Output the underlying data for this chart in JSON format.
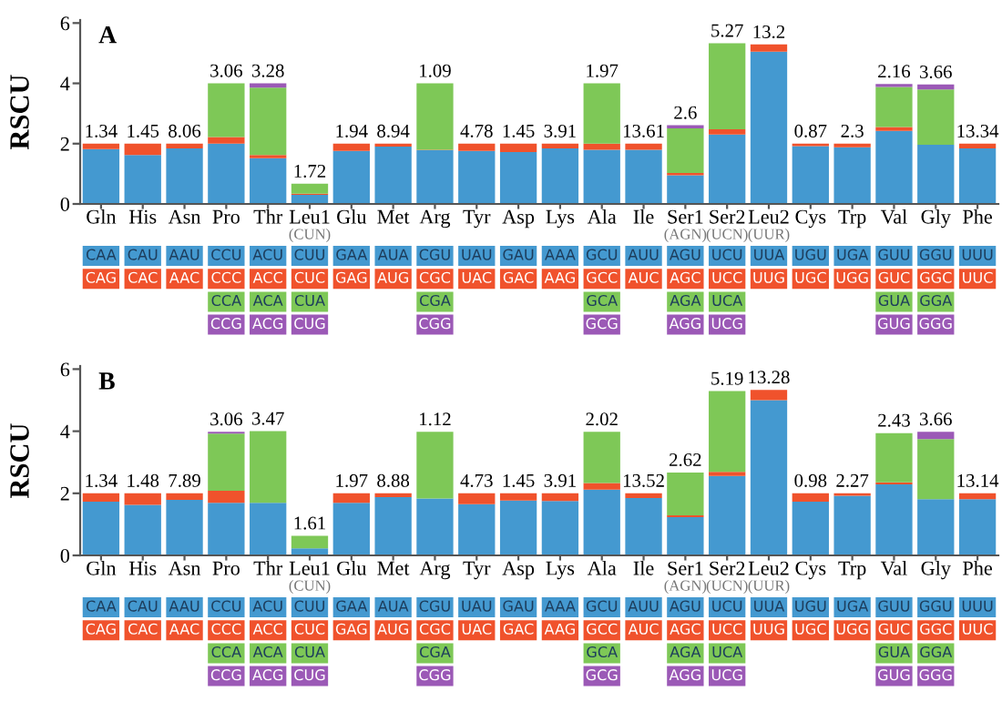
{
  "chart_data": [
    {
      "type": "bar",
      "stacked": true,
      "title": "A",
      "ylabel": "RSCU",
      "categories": [
        "Gln",
        "His",
        "Asn",
        "Pro",
        "Thr",
        "Leu1\n(CUN)",
        "Glu",
        "Met",
        "Arg",
        "Tyr",
        "Asp",
        "Lys",
        "Ala",
        "Ile",
        "Ser1\n(AGN)",
        "Ser2\n(UCN)",
        "Leu2\n(UUR)",
        "Cys",
        "Trp",
        "Val",
        "Gly",
        "Phe"
      ],
      "series": [
        {
          "color": "#4499d0",
          "values": [
            1.82,
            1.62,
            1.84,
            2.0,
            1.52,
            0.3,
            1.76,
            1.9,
            1.78,
            1.76,
            1.72,
            1.84,
            1.8,
            1.8,
            0.95,
            2.3,
            5.05,
            1.92,
            1.88,
            2.42,
            1.96,
            1.84
          ]
        },
        {
          "color": "#f0522c",
          "values": [
            0.18,
            0.38,
            0.16,
            0.22,
            0.1,
            0.04,
            0.24,
            0.1,
            0.02,
            0.24,
            0.28,
            0.16,
            0.2,
            0.2,
            0.08,
            0.18,
            0.24,
            0.08,
            0.12,
            0.13,
            0,
            0.16
          ]
        },
        {
          "color": "#7ec857",
          "values": [
            null,
            null,
            null,
            1.78,
            2.24,
            0.33,
            null,
            null,
            2.2,
            null,
            null,
            null,
            2.0,
            null,
            1.48,
            2.85,
            null,
            null,
            null,
            1.33,
            1.84,
            null
          ]
        },
        {
          "color": "#9b59b6",
          "values": [
            null,
            null,
            null,
            0,
            0.14,
            0,
            null,
            null,
            0,
            null,
            null,
            null,
            0,
            null,
            0.1,
            0,
            null,
            null,
            null,
            0.1,
            0.16,
            null
          ]
        }
      ],
      "ylim": [
        0,
        6.1
      ],
      "yticks": [
        0,
        2,
        4,
        6
      ],
      "grid": false,
      "legend": false,
      "annotations": [
        {
          "text": "1.34",
          "x": "Gln",
          "y": 2.0
        },
        {
          "text": "1.45",
          "x": "His",
          "y": 2.0
        },
        {
          "text": "8.06",
          "x": "Asn",
          "y": 2.0
        },
        {
          "text": "3.06",
          "x": "Pro",
          "y": 4.0
        },
        {
          "text": "3.28",
          "x": "Thr",
          "y": 4.0
        },
        {
          "text": "1.72",
          "x": "Leu1\n(CUN)",
          "y": 0.67
        },
        {
          "text": "1.94",
          "x": "Glu",
          "y": 2.0
        },
        {
          "text": "8.94",
          "x": "Met",
          "y": 2.0
        },
        {
          "text": "1.09",
          "x": "Arg",
          "y": 4.0
        },
        {
          "text": "4.78",
          "x": "Tyr",
          "y": 2.0
        },
        {
          "text": "1.45",
          "x": "Asp",
          "y": 2.0
        },
        {
          "text": "3.91",
          "x": "Lys",
          "y": 2.0
        },
        {
          "text": "1.97",
          "x": "Ala",
          "y": 4.0
        },
        {
          "text": "13.61",
          "x": "Ile",
          "y": 2.0
        },
        {
          "text": "2.6",
          "x": "Ser1\n(AGN)",
          "y": 2.61
        },
        {
          "text": "5.27",
          "x": "Ser2\n(UCN)",
          "y": 5.33
        },
        {
          "text": "13.2",
          "x": "Leu2\n(UUR)",
          "y": 5.29
        },
        {
          "text": "0.87",
          "x": "Cys",
          "y": 2.0
        },
        {
          "text": "2.3",
          "x": "Trp",
          "y": 2.0
        },
        {
          "text": "2.16",
          "x": "Val",
          "y": 3.98
        },
        {
          "text": "3.66",
          "x": "Gly",
          "y": 3.96
        },
        {
          "text": "13.34",
          "x": "Phe",
          "y": 2.0
        },
        "CAA",
        "CAG",
        "CAU",
        "CAC",
        "AAU",
        "AAC",
        "CCU",
        "CCC",
        "CCA",
        "CCG",
        "ACU",
        "ACC",
        "ACA",
        "ACG",
        "CUU",
        "CUC",
        "CUA",
        "CUG",
        "GAA",
        "GAG",
        "AUA",
        "AUG",
        "CGU",
        "CGC",
        "CGA",
        "CGG",
        "UAU",
        "UAC",
        "GAU",
        "GAC",
        "AAA",
        "AAG",
        "GCU",
        "GCC",
        "GCA",
        "GCG",
        "AUU",
        "AUC",
        "AGU",
        "AGC",
        "AGA",
        "AGG",
        "UCU",
        "UCC",
        "UCA",
        "UCG",
        "UUA",
        "UUG",
        "UGU",
        "UGC",
        "UGA",
        "UGG",
        "GUU",
        "GUC",
        "GUA",
        "GUG",
        "GGU",
        "GGC",
        "GGA",
        "GGG",
        "UUU",
        "UUC"
      ]
    },
    {
      "type": "bar",
      "stacked": true,
      "title": "B",
      "ylabel": "RSCU",
      "categories": [
        "Gln",
        "His",
        "Asn",
        "Pro",
        "Thr",
        "Leu1\n(CUN)",
        "Glu",
        "Met",
        "Arg",
        "Tyr",
        "Asp",
        "Lys",
        "Ala",
        "Ile",
        "Ser1\n(AGN)",
        "Ser2\n(UCN)",
        "Leu2\n(UUR)",
        "Cys",
        "Trp",
        "Val",
        "Gly",
        "Phe"
      ],
      "series": [
        {
          "color": "#4499d0",
          "values": [
            1.73,
            1.63,
            1.79,
            1.69,
            1.69,
            0.23,
            1.69,
            1.88,
            1.83,
            1.65,
            1.77,
            1.75,
            2.12,
            1.85,
            1.23,
            2.56,
            5.0,
            1.73,
            1.92,
            2.29,
            1.81,
            1.81
          ]
        },
        {
          "color": "#f0522c",
          "values": [
            0.27,
            0.37,
            0.21,
            0.39,
            0,
            0,
            0.31,
            0.12,
            0,
            0.35,
            0.23,
            0.25,
            0.21,
            0.15,
            0.06,
            0.13,
            0.33,
            0.27,
            0.08,
            0.06,
            0,
            0.19
          ]
        },
        {
          "color": "#7ec857",
          "values": [
            null,
            null,
            null,
            1.84,
            2.31,
            0.4,
            null,
            null,
            2.15,
            null,
            null,
            null,
            1.65,
            null,
            1.38,
            2.6,
            null,
            null,
            null,
            1.59,
            1.94,
            null
          ]
        },
        {
          "color": "#9b59b6",
          "values": [
            null,
            null,
            null,
            0.06,
            0,
            0,
            null,
            null,
            0,
            null,
            null,
            null,
            0,
            null,
            0,
            0,
            null,
            null,
            null,
            0,
            0.23,
            null
          ]
        }
      ],
      "ylim": [
        0,
        6.1
      ],
      "yticks": [
        0,
        2,
        4,
        6
      ],
      "grid": false,
      "legend": false,
      "annotations": [
        {
          "text": "1.34",
          "x": "Gln",
          "y": 2.0
        },
        {
          "text": "1.48",
          "x": "His",
          "y": 2.0
        },
        {
          "text": "7.89",
          "x": "Asn",
          "y": 2.0
        },
        {
          "text": "3.06",
          "x": "Pro",
          "y": 3.98
        },
        {
          "text": "3.47",
          "x": "Thr",
          "y": 4.0
        },
        {
          "text": "1.61",
          "x": "Leu1\n(CUN)",
          "y": 0.63
        },
        {
          "text": "1.97",
          "x": "Glu",
          "y": 2.0
        },
        {
          "text": "8.88",
          "x": "Met",
          "y": 2.0
        },
        {
          "text": "1.12",
          "x": "Arg",
          "y": 3.98
        },
        {
          "text": "4.73",
          "x": "Tyr",
          "y": 2.0
        },
        {
          "text": "1.45",
          "x": "Asp",
          "y": 2.0
        },
        {
          "text": "3.91",
          "x": "Lys",
          "y": 2.0
        },
        {
          "text": "2.02",
          "x": "Ala",
          "y": 3.98
        },
        {
          "text": "13.52",
          "x": "Ile",
          "y": 2.0
        },
        {
          "text": "2.62",
          "x": "Ser1\n(AGN)",
          "y": 2.67
        },
        {
          "text": "5.19",
          "x": "Ser2\n(UCN)",
          "y": 5.29
        },
        {
          "text": "13.28",
          "x": "Leu2\n(UUR)",
          "y": 5.33
        },
        {
          "text": "0.98",
          "x": "Cys",
          "y": 2.0
        },
        {
          "text": "2.27",
          "x": "Trp",
          "y": 2.0
        },
        {
          "text": "2.43",
          "x": "Val",
          "y": 3.94
        },
        {
          "text": "3.66",
          "x": "Gly",
          "y": 3.98
        },
        {
          "text": "13.14",
          "x": "Phe",
          "y": 2.0
        },
        "CAA",
        "CAG",
        "CAU",
        "CAC",
        "AAU",
        "AAC",
        "CCU",
        "CCC",
        "CCA",
        "CCG",
        "ACU",
        "ACC",
        "ACA",
        "ACG",
        "CUU",
        "CUC",
        "CUA",
        "CUG",
        "GAA",
        "GAG",
        "AUA",
        "AUG",
        "CGU",
        "CGC",
        "CGA",
        "CGG",
        "UAU",
        "UAC",
        "GAU",
        "GAC",
        "AAA",
        "AAG",
        "GCU",
        "GCC",
        "GCA",
        "GCG",
        "AUU",
        "AUC",
        "AGU",
        "AGC",
        "AGA",
        "AGG",
        "UCU",
        "UCC",
        "UCA",
        "UCG",
        "UUA",
        "UUG",
        "UGU",
        "UGC",
        "UGA",
        "UGG",
        "GUU",
        "GUC",
        "GUA",
        "GUG",
        "GGU",
        "GGC",
        "GGA",
        "GGG",
        "UUU",
        "UUC"
      ]
    }
  ]
}
